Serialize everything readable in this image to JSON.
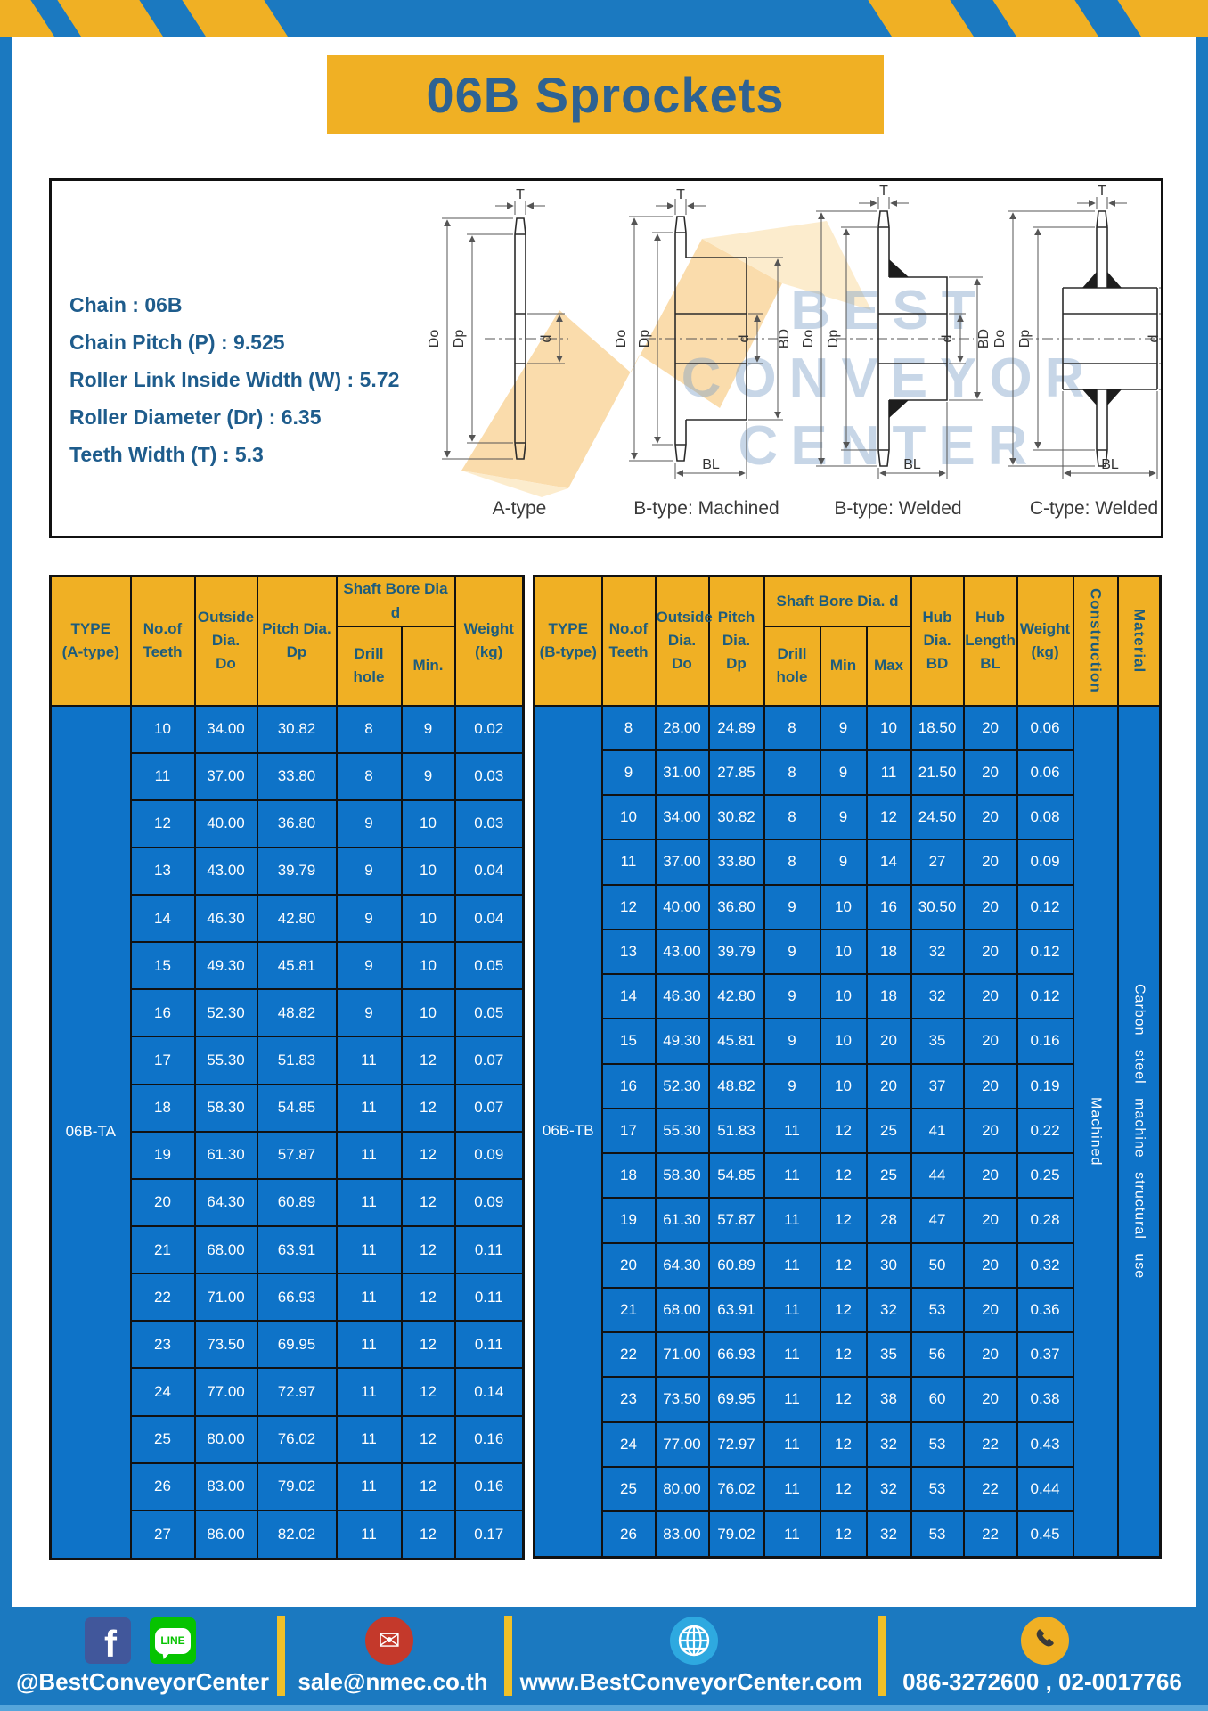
{
  "page": {
    "title": "06B Sprockets"
  },
  "specs": {
    "lines": [
      "Chain  : 06B",
      "Chain Pitch (P)  :  9.525",
      "Roller Link Inside Width (W)  :  5.72",
      "Roller Diameter (Dr)  : 6.35",
      "Teeth Width (T)  :  5.3"
    ]
  },
  "diagrams": {
    "captions": [
      "A-type",
      "B-type: Machined",
      "B-type: Welded",
      "C-type: Welded"
    ],
    "dims": {
      "t": "T",
      "do": "Do",
      "dp": "Dp",
      "d": "d",
      "bd": "BD",
      "bl": "BL"
    },
    "watermark": [
      "BEST",
      "CONVEYOR",
      "CENTER"
    ]
  },
  "table_a": {
    "headers": {
      "type": "TYPE\n(A-type)",
      "teeth": "No.of\nTeeth",
      "outside": "Outside\nDia.\nDo",
      "pitch": "Pitch Dia.\nDp",
      "shaft_bore": "Shaft Bore Dia d",
      "drill": "Drill hole",
      "min": "Min.",
      "weight": "Weight\n(kg)"
    },
    "type_label": "06B-TA",
    "rows": [
      [
        "10",
        "34.00",
        "30.82",
        "8",
        "9",
        "0.02"
      ],
      [
        "11",
        "37.00",
        "33.80",
        "8",
        "9",
        "0.03"
      ],
      [
        "12",
        "40.00",
        "36.80",
        "9",
        "10",
        "0.03"
      ],
      [
        "13",
        "43.00",
        "39.79",
        "9",
        "10",
        "0.04"
      ],
      [
        "14",
        "46.30",
        "42.80",
        "9",
        "10",
        "0.04"
      ],
      [
        "15",
        "49.30",
        "45.81",
        "9",
        "10",
        "0.05"
      ],
      [
        "16",
        "52.30",
        "48.82",
        "9",
        "10",
        "0.05"
      ],
      [
        "17",
        "55.30",
        "51.83",
        "11",
        "12",
        "0.07"
      ],
      [
        "18",
        "58.30",
        "54.85",
        "11",
        "12",
        "0.07"
      ],
      [
        "19",
        "61.30",
        "57.87",
        "11",
        "12",
        "0.09"
      ],
      [
        "20",
        "64.30",
        "60.89",
        "11",
        "12",
        "0.09"
      ],
      [
        "21",
        "68.00",
        "63.91",
        "11",
        "12",
        "0.11"
      ],
      [
        "22",
        "71.00",
        "66.93",
        "11",
        "12",
        "0.11"
      ],
      [
        "23",
        "73.50",
        "69.95",
        "11",
        "12",
        "0.11"
      ],
      [
        "24",
        "77.00",
        "72.97",
        "11",
        "12",
        "0.14"
      ],
      [
        "25",
        "80.00",
        "76.02",
        "11",
        "12",
        "0.16"
      ],
      [
        "26",
        "83.00",
        "79.02",
        "11",
        "12",
        "0.16"
      ],
      [
        "27",
        "86.00",
        "82.02",
        "11",
        "12",
        "0.17"
      ]
    ]
  },
  "table_b": {
    "headers": {
      "type": "TYPE\n(B-type)",
      "teeth": "No.of\nTeeth",
      "outside": "Outside\nDia.\nDo",
      "pitch": "Pitch\nDia.\nDp",
      "shaft_bore": "Shaft Bore Dia.  d",
      "drill": "Drill hole",
      "min": "Min",
      "max": "Max",
      "hub_dia": "Hub\nDia.\nBD",
      "hub_len": "Hub\nLength\nBL",
      "weight": "Weight\n(kg)",
      "construction": "Construction",
      "material": "Material"
    },
    "type_label": "06B-TB",
    "construction": "Machined",
    "material": "Carbon steel machine structural use",
    "rows": [
      [
        "8",
        "28.00",
        "24.89",
        "8",
        "9",
        "10",
        "18.50",
        "20",
        "0.06"
      ],
      [
        "9",
        "31.00",
        "27.85",
        "8",
        "9",
        "11",
        "21.50",
        "20",
        "0.06"
      ],
      [
        "10",
        "34.00",
        "30.82",
        "8",
        "9",
        "12",
        "24.50",
        "20",
        "0.08"
      ],
      [
        "11",
        "37.00",
        "33.80",
        "8",
        "9",
        "14",
        "27",
        "20",
        "0.09"
      ],
      [
        "12",
        "40.00",
        "36.80",
        "9",
        "10",
        "16",
        "30.50",
        "20",
        "0.12"
      ],
      [
        "13",
        "43.00",
        "39.79",
        "9",
        "10",
        "18",
        "32",
        "20",
        "0.12"
      ],
      [
        "14",
        "46.30",
        "42.80",
        "9",
        "10",
        "18",
        "32",
        "20",
        "0.12"
      ],
      [
        "15",
        "49.30",
        "45.81",
        "9",
        "10",
        "20",
        "35",
        "20",
        "0.16"
      ],
      [
        "16",
        "52.30",
        "48.82",
        "9",
        "10",
        "20",
        "37",
        "20",
        "0.19"
      ],
      [
        "17",
        "55.30",
        "51.83",
        "11",
        "12",
        "25",
        "41",
        "20",
        "0.22"
      ],
      [
        "18",
        "58.30",
        "54.85",
        "11",
        "12",
        "25",
        "44",
        "20",
        "0.25"
      ],
      [
        "19",
        "61.30",
        "57.87",
        "11",
        "12",
        "28",
        "47",
        "20",
        "0.28"
      ],
      [
        "20",
        "64.30",
        "60.89",
        "11",
        "12",
        "30",
        "50",
        "20",
        "0.32"
      ],
      [
        "21",
        "68.00",
        "63.91",
        "11",
        "12",
        "32",
        "53",
        "20",
        "0.36"
      ],
      [
        "22",
        "71.00",
        "66.93",
        "11",
        "12",
        "35",
        "56",
        "20",
        "0.37"
      ],
      [
        "23",
        "73.50",
        "69.95",
        "11",
        "12",
        "38",
        "60",
        "20",
        "0.38"
      ],
      [
        "24",
        "77.00",
        "72.97",
        "11",
        "12",
        "32",
        "53",
        "22",
        "0.43"
      ],
      [
        "25",
        "80.00",
        "76.02",
        "11",
        "12",
        "32",
        "53",
        "22",
        "0.44"
      ],
      [
        "26",
        "83.00",
        "79.02",
        "11",
        "12",
        "32",
        "53",
        "22",
        "0.45"
      ]
    ]
  },
  "footer": {
    "facebook": "@BestConveyorCenter",
    "email": "sale@nmec.co.th",
    "website": "www.BestConveyorCenter.com",
    "phone": "086-3272600 , 02-0017766",
    "icons": {
      "facebook_letter": "f",
      "line_label": "LINE",
      "email_glyph": "✉"
    }
  },
  "colors": {
    "frame_blue": "#1b79c0",
    "cell_blue": "#0e73c8",
    "accent_yellow": "#f0b024",
    "header_text": "#1d5c7c",
    "title_text": "#2e6292"
  }
}
